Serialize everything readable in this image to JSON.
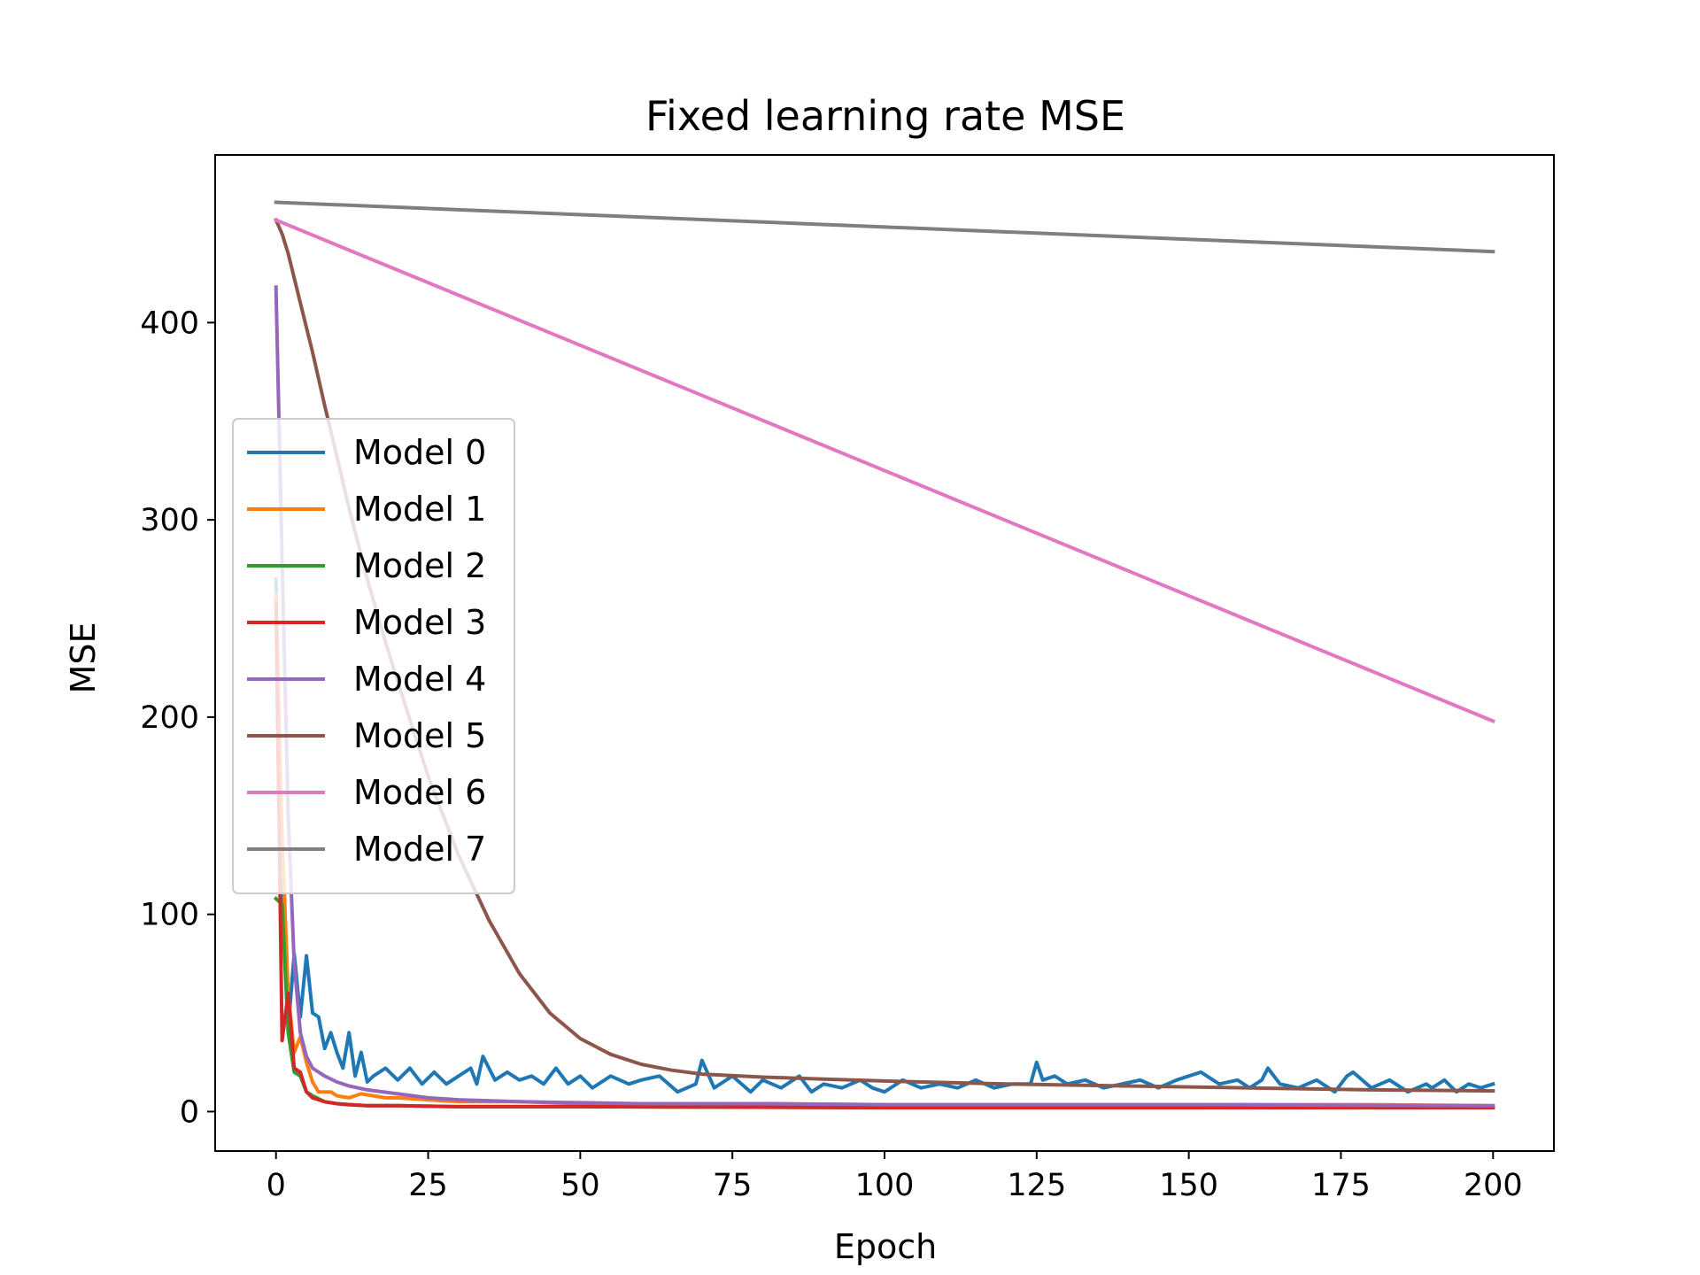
{
  "chart_data": {
    "type": "line",
    "title": "Fixed learning rate MSE",
    "xlabel": "Epoch",
    "ylabel": "MSE",
    "xlim": [
      -10,
      210
    ],
    "ylim": [
      -20,
      485
    ],
    "xticks": [
      0,
      25,
      50,
      75,
      100,
      125,
      150,
      175,
      200
    ],
    "yticks": [
      0,
      100,
      200,
      300,
      400
    ],
    "grid": false,
    "legend_position": "center-left",
    "series": [
      {
        "name": "Model 0",
        "color": "#1f77b4",
        "x": [
          0,
          1,
          2,
          3,
          4,
          5,
          6,
          7,
          8,
          9,
          10,
          11,
          12,
          13,
          14,
          15,
          16,
          18,
          20,
          22,
          24,
          26,
          28,
          30,
          32,
          33,
          34,
          36,
          38,
          40,
          42,
          44,
          46,
          48,
          50,
          52,
          55,
          58,
          60,
          63,
          66,
          69,
          70,
          72,
          75,
          78,
          80,
          83,
          86,
          88,
          90,
          93,
          96,
          98,
          100,
          103,
          106,
          109,
          112,
          115,
          118,
          121,
          124,
          125,
          126,
          128,
          130,
          133,
          136,
          139,
          142,
          145,
          148,
          150,
          152,
          155,
          158,
          160,
          162,
          163,
          165,
          168,
          171,
          174,
          176,
          177,
          180,
          183,
          186,
          189,
          190,
          192,
          194,
          196,
          198,
          200
        ],
        "y": [
          270,
          110,
          42,
          80,
          48,
          79,
          50,
          48,
          32,
          40,
          30,
          22,
          40,
          18,
          30,
          15,
          18,
          22,
          16,
          22,
          14,
          20,
          14,
          18,
          22,
          14,
          28,
          16,
          20,
          16,
          18,
          14,
          22,
          14,
          18,
          12,
          18,
          14,
          16,
          18,
          10,
          14,
          26,
          12,
          18,
          10,
          16,
          12,
          18,
          10,
          14,
          12,
          16,
          12,
          10,
          16,
          12,
          14,
          12,
          16,
          12,
          14,
          14,
          25,
          16,
          18,
          14,
          16,
          12,
          14,
          16,
          12,
          16,
          18,
          20,
          14,
          16,
          12,
          16,
          22,
          14,
          12,
          16,
          10,
          18,
          20,
          12,
          16,
          10,
          14,
          12,
          16,
          10,
          14,
          12,
          14
        ]
      },
      {
        "name": "Model 1",
        "color": "#ff7f0e",
        "x": [
          0,
          1,
          2,
          3,
          4,
          5,
          6,
          7,
          8,
          9,
          10,
          12,
          14,
          16,
          18,
          20,
          25,
          30,
          40,
          50,
          60,
          80,
          100,
          120,
          150,
          180,
          200
        ],
        "y": [
          262,
          140,
          60,
          30,
          38,
          25,
          15,
          10,
          10,
          10,
          8,
          7,
          9,
          8,
          7,
          7,
          6,
          5,
          5,
          4,
          4,
          4,
          3.5,
          3.5,
          3.5,
          3.5,
          3
        ]
      },
      {
        "name": "Model 2",
        "color": "#2ca02c",
        "x": [
          0,
          1,
          2,
          3,
          4,
          5,
          6,
          8,
          10,
          12,
          15,
          20,
          30,
          50,
          100,
          150,
          200
        ],
        "y": [
          108,
          105,
          40,
          20,
          18,
          10,
          8,
          5,
          4,
          3.5,
          3,
          3,
          2.5,
          2.5,
          2,
          2,
          2
        ]
      },
      {
        "name": "Model 3",
        "color": "#d62728",
        "x": [
          0,
          1,
          2,
          3,
          4,
          5,
          6,
          8,
          10,
          12,
          15,
          20,
          30,
          50,
          100,
          150,
          200
        ],
        "y": [
          258,
          36,
          60,
          22,
          20,
          10,
          7,
          5,
          4,
          3.5,
          3,
          3,
          2.5,
          2.5,
          2,
          2,
          2
        ]
      },
      {
        "name": "Model 4",
        "color": "#9467bd",
        "x": [
          0,
          1,
          2,
          3,
          4,
          5,
          6,
          8,
          10,
          12,
          15,
          20,
          25,
          30,
          40,
          50,
          60,
          80,
          100,
          150,
          200
        ],
        "y": [
          418,
          280,
          150,
          75,
          40,
          28,
          22,
          18,
          15,
          13,
          11,
          9,
          7,
          6,
          5,
          4.5,
          4,
          4,
          3.5,
          3.5,
          3
        ]
      },
      {
        "name": "Model 5",
        "color": "#8c564b",
        "x": [
          0,
          1,
          2,
          4,
          6,
          8,
          10,
          12,
          15,
          18,
          20,
          25,
          30,
          35,
          40,
          45,
          50,
          55,
          60,
          65,
          70,
          80,
          90,
          100,
          120,
          140,
          160,
          180,
          200
        ],
        "y": [
          452,
          445,
          435,
          410,
          385,
          358,
          332,
          306,
          270,
          238,
          218,
          170,
          130,
          97,
          70,
          50,
          37,
          29,
          24,
          21,
          19,
          17.5,
          16.5,
          15.5,
          14,
          13,
          12,
          11,
          10.5
        ]
      },
      {
        "name": "Model 6",
        "color": "#e377c2",
        "x": [
          0,
          200
        ],
        "y": [
          452,
          198
        ]
      },
      {
        "name": "Model 7",
        "color": "#7f7f7f",
        "x": [
          0,
          200
        ],
        "y": [
          461,
          436
        ]
      }
    ]
  }
}
